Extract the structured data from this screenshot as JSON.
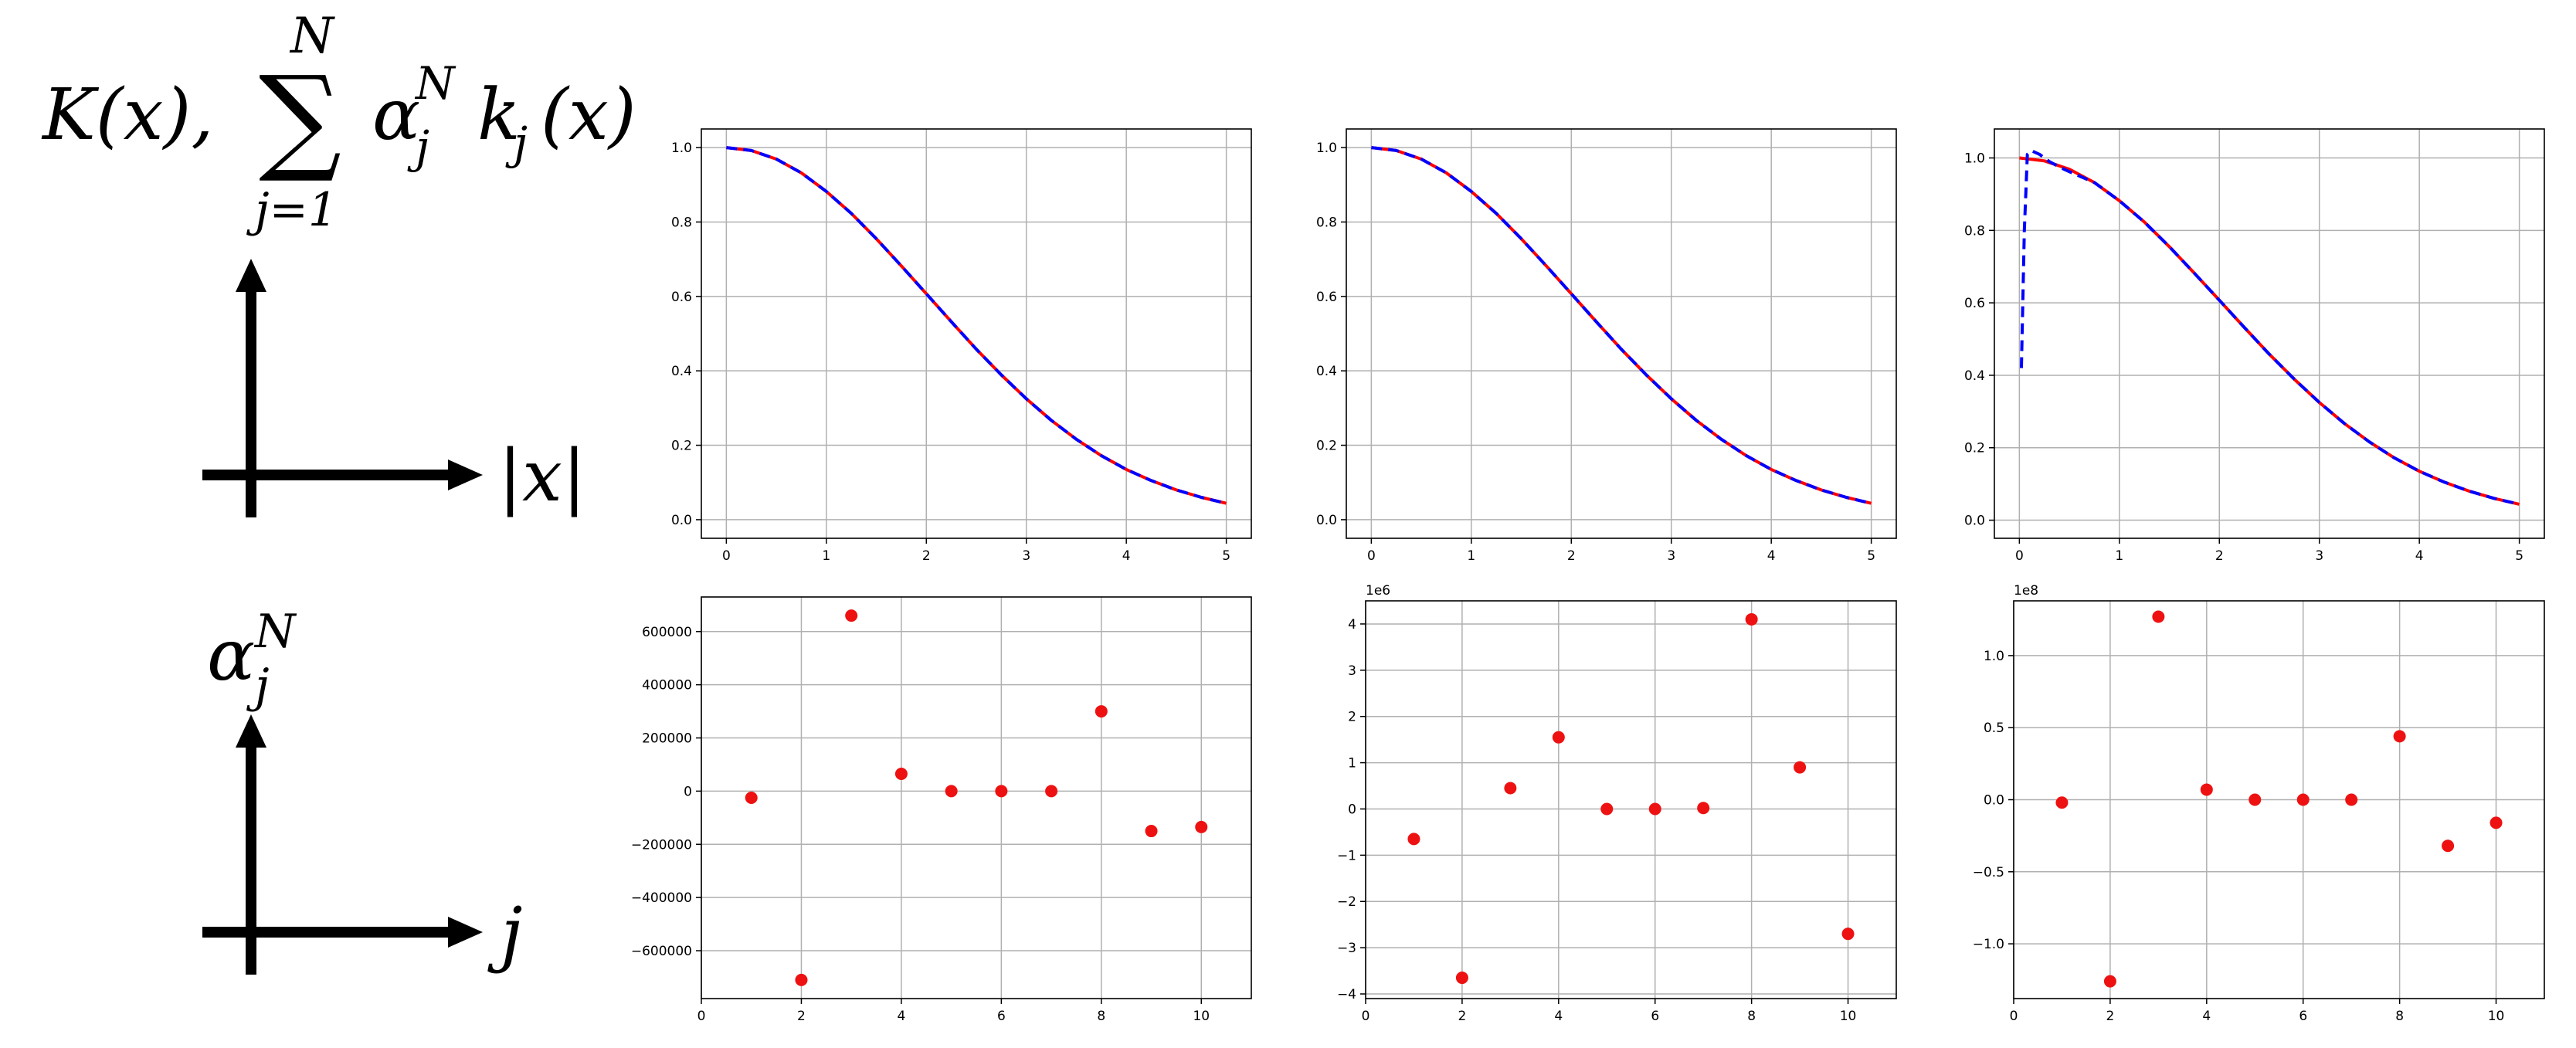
{
  "labels": {
    "kernel_lhs": "K(x),",
    "sum_upper": "N",
    "sum_symbol": "∑",
    "sum_lower": "j=1",
    "sum_term_alpha": "α",
    "sum_term_super": "N",
    "sum_term_sub": "j",
    "sum_term_k": "k",
    "sum_term_ksub": "j",
    "sum_term_arg": "(x)",
    "axis_x_label": "|x|",
    "coef_alpha": "α",
    "coef_super": "N",
    "coef_sub": "j",
    "axis_j_label": "j"
  },
  "colors": {
    "target": "#ff0000",
    "approx": "#0000ff",
    "points": "#ee1111",
    "grid": "#b0b0b0"
  },
  "chart_data": [
    {
      "type": "line",
      "panel": "top-1",
      "xlim": [
        -0.25,
        5.25
      ],
      "ylim": [
        -0.05,
        1.05
      ],
      "xticks": [
        "0",
        "1",
        "2",
        "3",
        "4",
        "5"
      ],
      "yticks": [
        "0.0",
        "0.2",
        "0.4",
        "0.6",
        "0.8",
        "1.0"
      ],
      "grid": true,
      "series": [
        {
          "style": "solid",
          "color": "red",
          "x": [
            0,
            0.25,
            0.5,
            0.75,
            1,
            1.25,
            1.5,
            1.75,
            2,
            2.25,
            2.5,
            2.75,
            3,
            3.25,
            3.5,
            3.75,
            4,
            4.25,
            4.5,
            4.75,
            5
          ],
          "y": [
            1.0,
            0.992,
            0.969,
            0.932,
            0.882,
            0.823,
            0.755,
            0.682,
            0.607,
            0.532,
            0.458,
            0.389,
            0.325,
            0.267,
            0.216,
            0.172,
            0.135,
            0.105,
            0.08,
            0.06,
            0.044
          ]
        },
        {
          "style": "dashed",
          "color": "blue",
          "x": [
            0,
            0.25,
            0.5,
            0.75,
            1,
            1.25,
            1.5,
            1.75,
            2,
            2.25,
            2.5,
            2.75,
            3,
            3.25,
            3.5,
            3.75,
            4,
            4.25,
            4.5,
            4.75,
            5
          ],
          "y": [
            1.0,
            0.992,
            0.969,
            0.932,
            0.882,
            0.823,
            0.755,
            0.682,
            0.607,
            0.532,
            0.458,
            0.389,
            0.325,
            0.267,
            0.216,
            0.172,
            0.135,
            0.105,
            0.08,
            0.06,
            0.044
          ]
        }
      ]
    },
    {
      "type": "line",
      "panel": "top-2",
      "xlim": [
        -0.25,
        5.25
      ],
      "ylim": [
        -0.05,
        1.05
      ],
      "xticks": [
        "0",
        "1",
        "2",
        "3",
        "4",
        "5"
      ],
      "yticks": [
        "0.0",
        "0.2",
        "0.4",
        "0.6",
        "0.8",
        "1.0"
      ],
      "grid": true,
      "series": [
        {
          "style": "solid",
          "color": "red",
          "x": [
            0,
            0.25,
            0.5,
            0.75,
            1,
            1.25,
            1.5,
            1.75,
            2,
            2.25,
            2.5,
            2.75,
            3,
            3.25,
            3.5,
            3.75,
            4,
            4.25,
            4.5,
            4.75,
            5
          ],
          "y": [
            1.0,
            0.992,
            0.969,
            0.932,
            0.882,
            0.823,
            0.755,
            0.682,
            0.607,
            0.532,
            0.458,
            0.389,
            0.325,
            0.267,
            0.216,
            0.172,
            0.135,
            0.105,
            0.08,
            0.06,
            0.044
          ]
        },
        {
          "style": "dashed",
          "color": "blue",
          "x": [
            0,
            0.25,
            0.5,
            0.75,
            1,
            1.25,
            1.5,
            1.75,
            2,
            2.25,
            2.5,
            2.75,
            3,
            3.25,
            3.5,
            3.75,
            4,
            4.25,
            4.5,
            4.75,
            5
          ],
          "y": [
            1.0,
            0.992,
            0.969,
            0.932,
            0.882,
            0.823,
            0.755,
            0.682,
            0.607,
            0.532,
            0.458,
            0.389,
            0.325,
            0.267,
            0.216,
            0.172,
            0.135,
            0.105,
            0.08,
            0.06,
            0.044
          ]
        }
      ]
    },
    {
      "type": "line",
      "panel": "top-3",
      "xlim": [
        -0.25,
        5.25
      ],
      "ylim": [
        -0.05,
        1.08
      ],
      "xticks": [
        "0",
        "1",
        "2",
        "3",
        "4",
        "5"
      ],
      "yticks": [
        "0.0",
        "0.2",
        "0.4",
        "0.6",
        "0.8",
        "1.0"
      ],
      "grid": true,
      "series": [
        {
          "style": "solid",
          "color": "red",
          "x": [
            0,
            0.25,
            0.5,
            0.75,
            1,
            1.25,
            1.5,
            1.75,
            2,
            2.25,
            2.5,
            2.75,
            3,
            3.25,
            3.5,
            3.75,
            4,
            4.25,
            4.5,
            4.75,
            5
          ],
          "y": [
            1.0,
            0.992,
            0.969,
            0.932,
            0.882,
            0.823,
            0.755,
            0.682,
            0.607,
            0.532,
            0.458,
            0.389,
            0.325,
            0.267,
            0.216,
            0.172,
            0.135,
            0.105,
            0.08,
            0.06,
            0.044
          ]
        },
        {
          "style": "dashed",
          "color": "blue",
          "x": [
            0.02,
            0.05,
            0.08,
            0.12,
            0.2,
            0.3,
            0.4,
            0.5,
            0.75,
            1,
            1.25,
            1.5,
            1.75,
            2,
            2.25,
            2.5,
            2.75,
            3,
            3.25,
            3.5,
            3.75,
            4,
            4.25,
            4.5,
            4.75,
            5
          ],
          "y": [
            0.42,
            0.8,
            1.01,
            1.02,
            1.01,
            0.99,
            0.975,
            0.962,
            0.932,
            0.882,
            0.823,
            0.755,
            0.682,
            0.607,
            0.532,
            0.458,
            0.389,
            0.325,
            0.267,
            0.216,
            0.172,
            0.135,
            0.105,
            0.08,
            0.06,
            0.044
          ]
        }
      ]
    },
    {
      "type": "scatter",
      "panel": "bottom-1",
      "xlim": [
        0,
        11
      ],
      "ylim": [
        -780000,
        730000
      ],
      "xticks": [
        "0",
        "2",
        "4",
        "6",
        "8",
        "10"
      ],
      "xtick_values": [
        0,
        2,
        4,
        6,
        8,
        10
      ],
      "yticks": [
        "−600000",
        "−400000",
        "−200000",
        "0",
        "200000",
        "400000",
        "600000"
      ],
      "ytick_values": [
        -600000,
        -400000,
        -200000,
        0,
        200000,
        400000,
        600000
      ],
      "offset_label": "",
      "grid": true,
      "x": [
        1,
        2,
        3,
        4,
        5,
        6,
        7,
        8,
        9,
        10
      ],
      "y": [
        -25000,
        -710000,
        660000,
        65000,
        0,
        0,
        0,
        300000,
        -150000,
        -135000
      ]
    },
    {
      "type": "scatter",
      "panel": "bottom-2",
      "xlim": [
        0,
        11
      ],
      "ylim": [
        -4.1,
        4.5
      ],
      "xticks": [
        "0",
        "2",
        "4",
        "6",
        "8",
        "10"
      ],
      "xtick_values": [
        0,
        2,
        4,
        6,
        8,
        10
      ],
      "yticks": [
        "−4",
        "−3",
        "−2",
        "−1",
        "0",
        "1",
        "2",
        "3",
        "4"
      ],
      "ytick_values": [
        -4,
        -3,
        -2,
        -1,
        0,
        1,
        2,
        3,
        4
      ],
      "offset_label": "1e6",
      "grid": true,
      "x": [
        1,
        2,
        3,
        4,
        5,
        6,
        7,
        8,
        9,
        10
      ],
      "y": [
        -0.65,
        -3.65,
        0.45,
        1.55,
        0.0,
        0.0,
        0.02,
        4.1,
        0.9,
        -2.7
      ]
    },
    {
      "type": "scatter",
      "panel": "bottom-3",
      "xlim": [
        0,
        11
      ],
      "ylim": [
        -1.38,
        1.38
      ],
      "xticks": [
        "0",
        "2",
        "4",
        "6",
        "8",
        "10"
      ],
      "xtick_values": [
        0,
        2,
        4,
        6,
        8,
        10
      ],
      "yticks": [
        "−1.0",
        "−0.5",
        "0.0",
        "0.5",
        "1.0"
      ],
      "ytick_values": [
        -1.0,
        -0.5,
        0.0,
        0.5,
        1.0
      ],
      "offset_label": "1e8",
      "grid": true,
      "x": [
        1,
        2,
        3,
        4,
        5,
        6,
        7,
        8,
        9,
        10
      ],
      "y": [
        -0.02,
        -1.26,
        1.27,
        0.07,
        0.0,
        0.0,
        0.0,
        0.44,
        -0.32,
        -0.16
      ]
    }
  ]
}
